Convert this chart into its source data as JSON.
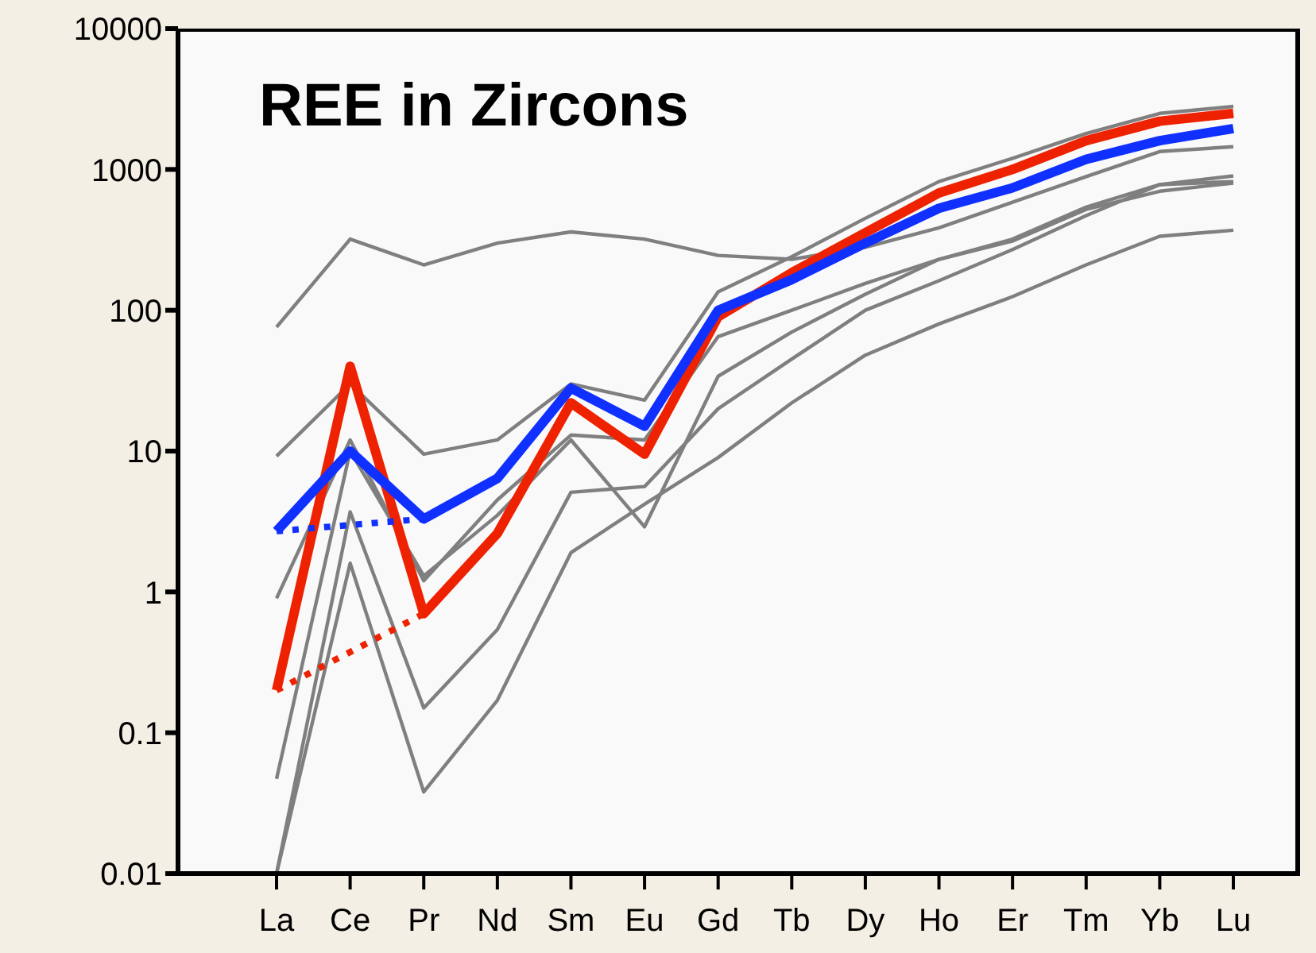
{
  "chart_data": {
    "type": "line",
    "title": "REE in Zircons",
    "categories": [
      "La",
      "Ce",
      "Pr",
      "Nd",
      "Sm",
      "Eu",
      "Gd",
      "Tb",
      "Dy",
      "Ho",
      "Er",
      "Tm",
      "Yb",
      "Lu"
    ],
    "log": "y",
    "ylim": [
      0.01,
      10000
    ],
    "yticks": [
      0.01,
      0.1,
      1,
      10,
      100,
      1000,
      10000
    ],
    "marker": "none",
    "series": [
      {
        "color": "#7f7f7f",
        "values": [
          76,
          320,
          210,
          300,
          360,
          320,
          245,
          230,
          280,
          385,
          585,
          890,
          1340,
          1450
        ]
      },
      {
        "color": "#7f7f7f",
        "values": [
          9.2,
          30,
          9.5,
          12,
          30,
          23,
          135,
          240,
          450,
          820,
          1200,
          1800,
          2500,
          2800
        ]
      },
      {
        "color": "#7f7f7f",
        "values": [
          0.9,
          12,
          1.2,
          4.5,
          13,
          12,
          65,
          100,
          155,
          230,
          310,
          520,
          700,
          800
        ]
      },
      {
        "color": "#7f7f7f",
        "values": [
          0.047,
          10,
          1.3,
          3.5,
          12,
          2.9,
          34,
          70,
          130,
          230,
          320,
          540,
          780,
          900
        ]
      },
      {
        "color": "#7f7f7f",
        "values": [
          0.01,
          3.7,
          0.15,
          0.54,
          5.1,
          5.6,
          20,
          45,
          100,
          162,
          270,
          470,
          780,
          820
        ]
      },
      {
        "color": "#7f7f7f",
        "values": [
          0.01,
          1.6,
          0.038,
          0.17,
          1.9,
          4.2,
          9,
          22,
          48,
          80,
          125,
          210,
          335,
          370
        ]
      },
      {
        "color": "#ee2200",
        "values": [
          0.2,
          40,
          0.7,
          2.6,
          22,
          9.5,
          90,
          185,
          355,
          680,
          1000,
          1600,
          2200,
          2500
        ]
      },
      {
        "color": "#1030ff",
        "values": [
          2.7,
          10,
          3.3,
          6.4,
          28,
          15,
          100,
          165,
          300,
          530,
          740,
          1180,
          1600,
          1950
        ]
      },
      {
        "color": "#ee2200",
        "line_style": "dotted",
        "values": [
          0.2,
          null,
          0.7,
          null,
          null,
          null,
          null,
          null,
          null,
          null,
          null,
          null,
          null,
          null
        ]
      },
      {
        "color": "#1030ff",
        "line_style": "dotted",
        "values": [
          2.7,
          null,
          3.3,
          null,
          null,
          null,
          null,
          null,
          null,
          null,
          null,
          null,
          null,
          null
        ]
      }
    ]
  }
}
